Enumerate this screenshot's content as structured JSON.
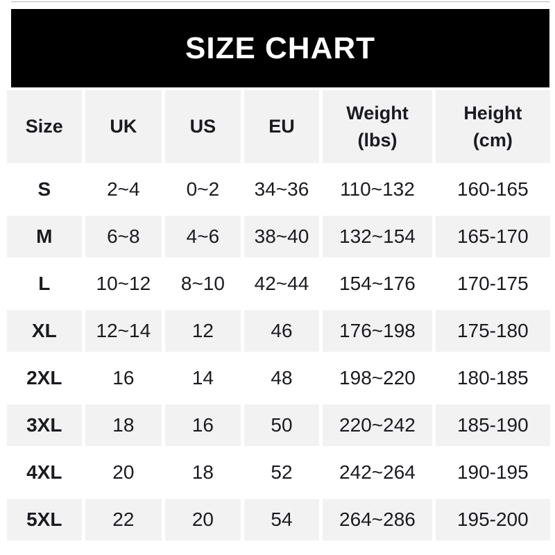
{
  "banner": {
    "title": "SIZE CHART"
  },
  "colors": {
    "banner_bg": "#000000",
    "banner_text": "#ffffff",
    "header_row_bg": "#f2f2f2",
    "alt_row_bg": "#f2f2f2",
    "row_bg": "#ffffff",
    "text": "#1a1b1f",
    "top_hairline": "#b9b9b9"
  },
  "chart_data": {
    "type": "table",
    "title": "SIZE CHART",
    "columns": [
      {
        "label": "Size",
        "sub": ""
      },
      {
        "label": "UK",
        "sub": ""
      },
      {
        "label": "US",
        "sub": ""
      },
      {
        "label": "EU",
        "sub": ""
      },
      {
        "label": "Weight",
        "sub": "(lbs)"
      },
      {
        "label": "Height",
        "sub": "(cm)"
      }
    ],
    "rows": [
      [
        "S",
        "2~4",
        "0~2",
        "34~36",
        "110~132",
        "160-165"
      ],
      [
        "M",
        "6~8",
        "4~6",
        "38~40",
        "132~154",
        "165-170"
      ],
      [
        "L",
        "10~12",
        "8~10",
        "42~44",
        "154~176",
        "170-175"
      ],
      [
        "XL",
        "12~14",
        "12",
        "46",
        "176~198",
        "175-180"
      ],
      [
        "2XL",
        "16",
        "14",
        "48",
        "198~220",
        "180-185"
      ],
      [
        "3XL",
        "18",
        "16",
        "50",
        "220~242",
        "185-190"
      ],
      [
        "4XL",
        "20",
        "18",
        "52",
        "242~264",
        "190-195"
      ],
      [
        "5XL",
        "22",
        "20",
        "54",
        "264~286",
        "195-200"
      ]
    ]
  }
}
